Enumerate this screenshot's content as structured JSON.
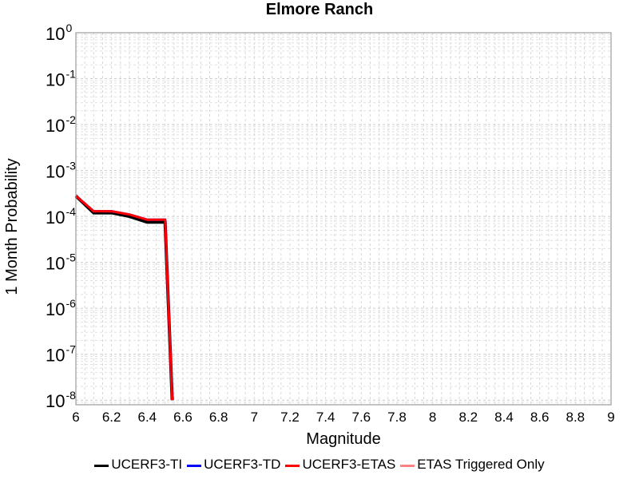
{
  "chart_data": {
    "type": "line",
    "title": "Elmore Ranch",
    "xlabel": "Magnitude",
    "ylabel": "1 Month Probability",
    "xlim": [
      6,
      9
    ],
    "ylim": [
      -8.1,
      0
    ],
    "y_scale": "log",
    "grid": true,
    "legend_position": "bottom",
    "x_ticks": [
      "6",
      "6.2",
      "6.4",
      "6.6",
      "6.8",
      "7",
      "7.2",
      "7.4",
      "7.6",
      "7.8",
      "8",
      "8.2",
      "8.4",
      "8.6",
      "8.8",
      "9"
    ],
    "y_ticks": [
      {
        "base": "10",
        "exp": "0"
      },
      {
        "base": "10",
        "exp": "-1"
      },
      {
        "base": "10",
        "exp": "-2"
      },
      {
        "base": "10",
        "exp": "-3"
      },
      {
        "base": "10",
        "exp": "-4"
      },
      {
        "base": "10",
        "exp": "-5"
      },
      {
        "base": "10",
        "exp": "-6"
      },
      {
        "base": "10",
        "exp": "-7"
      },
      {
        "base": "10",
        "exp": "-8"
      }
    ],
    "series": [
      {
        "name": "UCERF3-TI",
        "color": "#000000",
        "width": 4,
        "x": [
          6.0,
          6.1,
          6.2,
          6.3,
          6.4,
          6.5,
          6.54
        ],
        "y": [
          0.00028,
          0.00012,
          0.00012,
          0.0001,
          7.5e-05,
          7.5e-05,
          1e-08
        ]
      },
      {
        "name": "UCERF3-TD",
        "color": "#0000ff",
        "width": 3,
        "x": [
          6.0,
          6.1,
          6.2,
          6.3,
          6.4,
          6.5,
          6.54
        ],
        "y": [
          0.00028,
          0.00013,
          0.00013,
          0.00011,
          8.5e-05,
          8.5e-05,
          1e-08
        ]
      },
      {
        "name": "UCERF3-ETAS",
        "color": "#ff0000",
        "width": 3,
        "x": [
          6.0,
          6.1,
          6.2,
          6.3,
          6.4,
          6.5,
          6.54
        ],
        "y": [
          0.00028,
          0.00013,
          0.00013,
          0.00011,
          8.5e-05,
          8.5e-05,
          1e-08
        ]
      },
      {
        "name": "ETAS Triggered Only",
        "color": "#ff8080",
        "width": 2,
        "x": [],
        "y": []
      }
    ]
  }
}
